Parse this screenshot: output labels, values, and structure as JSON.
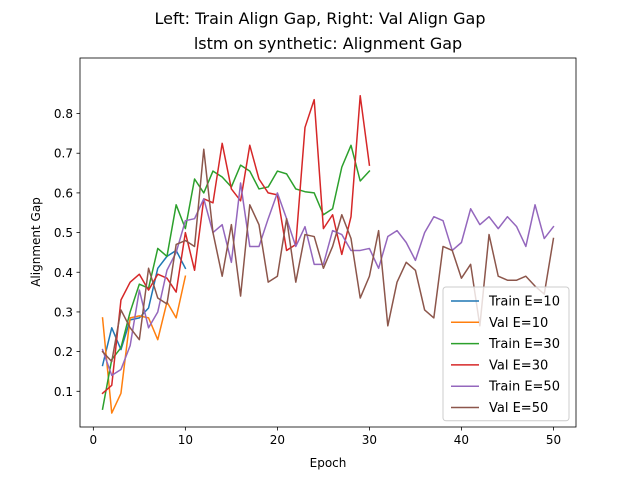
{
  "chart_data": {
    "type": "line",
    "suptitle": "Left: Train Align Gap, Right: Val Align Gap",
    "title": "lstm on synthetic: Alignment Gap",
    "xlabel": "Epoch",
    "ylabel": "Alignment Gap",
    "xlim": [
      -1.45,
      52.45
    ],
    "ylim": [
      0.01,
      0.94
    ],
    "xticks": [
      0,
      10,
      20,
      30,
      40,
      50
    ],
    "yticks": [
      0.1,
      0.2,
      0.3,
      0.4,
      0.5,
      0.6,
      0.7,
      0.8
    ],
    "grid": false,
    "legend_position": "lower-right",
    "series": [
      {
        "name": "Train E=10",
        "color": "#1f77b4",
        "x": [
          1,
          2,
          3,
          4,
          5,
          6,
          7,
          8,
          9,
          10
        ],
        "y": [
          0.165,
          0.26,
          0.205,
          0.28,
          0.285,
          0.31,
          0.41,
          0.44,
          0.455,
          0.41
        ]
      },
      {
        "name": "Val E=10",
        "color": "#ff7f0e",
        "x": [
          1,
          2,
          3,
          4,
          5,
          6,
          7,
          8,
          9,
          10
        ],
        "y": [
          0.285,
          0.045,
          0.095,
          0.285,
          0.29,
          0.285,
          0.23,
          0.325,
          0.285,
          0.39
        ]
      },
      {
        "name": "Train E=30",
        "color": "#2ca02c",
        "x": [
          1,
          2,
          3,
          4,
          5,
          6,
          7,
          8,
          9,
          10,
          11,
          12,
          13,
          14,
          15,
          16,
          17,
          18,
          19,
          20,
          21,
          22,
          23,
          24,
          25,
          26,
          27,
          28,
          29,
          30
        ],
        "y": [
          0.055,
          0.18,
          0.21,
          0.3,
          0.37,
          0.36,
          0.46,
          0.44,
          0.57,
          0.51,
          0.635,
          0.6,
          0.655,
          0.64,
          0.615,
          0.67,
          0.655,
          0.61,
          0.615,
          0.655,
          0.648,
          0.61,
          0.603,
          0.6,
          0.545,
          0.56,
          0.665,
          0.72,
          0.63,
          0.655
        ]
      },
      {
        "name": "Val E=30",
        "color": "#d62728",
        "x": [
          1,
          2,
          3,
          4,
          5,
          6,
          7,
          8,
          9,
          10,
          11,
          12,
          13,
          14,
          15,
          16,
          17,
          18,
          19,
          20,
          21,
          22,
          23,
          24,
          25,
          26,
          27,
          28,
          29,
          30
        ],
        "y": [
          0.095,
          0.115,
          0.33,
          0.375,
          0.395,
          0.355,
          0.395,
          0.385,
          0.35,
          0.5,
          0.405,
          0.585,
          0.575,
          0.725,
          0.61,
          0.58,
          0.72,
          0.635,
          0.6,
          0.595,
          0.455,
          0.47,
          0.765,
          0.835,
          0.51,
          0.545,
          0.445,
          0.54,
          0.845,
          0.67
        ]
      },
      {
        "name": "Train E=50",
        "color": "#9467bd",
        "x": [
          1,
          2,
          3,
          4,
          5,
          6,
          7,
          8,
          9,
          10,
          11,
          12,
          13,
          14,
          15,
          16,
          17,
          18,
          19,
          20,
          21,
          22,
          23,
          24,
          25,
          26,
          27,
          28,
          29,
          30,
          31,
          32,
          33,
          34,
          35,
          36,
          37,
          38,
          39,
          40,
          41,
          42,
          43,
          44,
          45,
          46,
          47,
          48,
          49,
          50
        ],
        "y": [
          0.205,
          0.14,
          0.155,
          0.215,
          0.355,
          0.26,
          0.3,
          0.405,
          0.45,
          0.53,
          0.535,
          0.585,
          0.5,
          0.52,
          0.425,
          0.625,
          0.465,
          0.465,
          0.535,
          0.6,
          0.535,
          0.465,
          0.515,
          0.42,
          0.42,
          0.505,
          0.495,
          0.455,
          0.455,
          0.46,
          0.41,
          0.49,
          0.505,
          0.475,
          0.43,
          0.5,
          0.54,
          0.53,
          0.455,
          0.475,
          0.56,
          0.52,
          0.54,
          0.51,
          0.54,
          0.515,
          0.465,
          0.57,
          0.485,
          0.515
        ]
      },
      {
        "name": "Val E=50",
        "color": "#8c564b",
        "x": [
          1,
          2,
          3,
          4,
          5,
          6,
          7,
          8,
          9,
          10,
          11,
          12,
          13,
          14,
          15,
          16,
          17,
          18,
          19,
          20,
          21,
          22,
          23,
          24,
          25,
          26,
          27,
          28,
          29,
          30,
          31,
          32,
          33,
          34,
          35,
          36,
          37,
          38,
          39,
          40,
          41,
          42,
          43,
          44,
          45,
          46,
          47,
          48,
          49,
          50
        ],
        "y": [
          0.2,
          0.175,
          0.305,
          0.26,
          0.23,
          0.41,
          0.335,
          0.32,
          0.47,
          0.48,
          0.465,
          0.71,
          0.5,
          0.39,
          0.52,
          0.34,
          0.57,
          0.52,
          0.375,
          0.39,
          0.535,
          0.375,
          0.495,
          0.49,
          0.41,
          0.465,
          0.545,
          0.485,
          0.335,
          0.39,
          0.505,
          0.265,
          0.375,
          0.425,
          0.405,
          0.305,
          0.285,
          0.465,
          0.455,
          0.385,
          0.42,
          0.265,
          0.495,
          0.39,
          0.38,
          0.38,
          0.39,
          0.365,
          0.345,
          0.485
        ]
      }
    ]
  }
}
